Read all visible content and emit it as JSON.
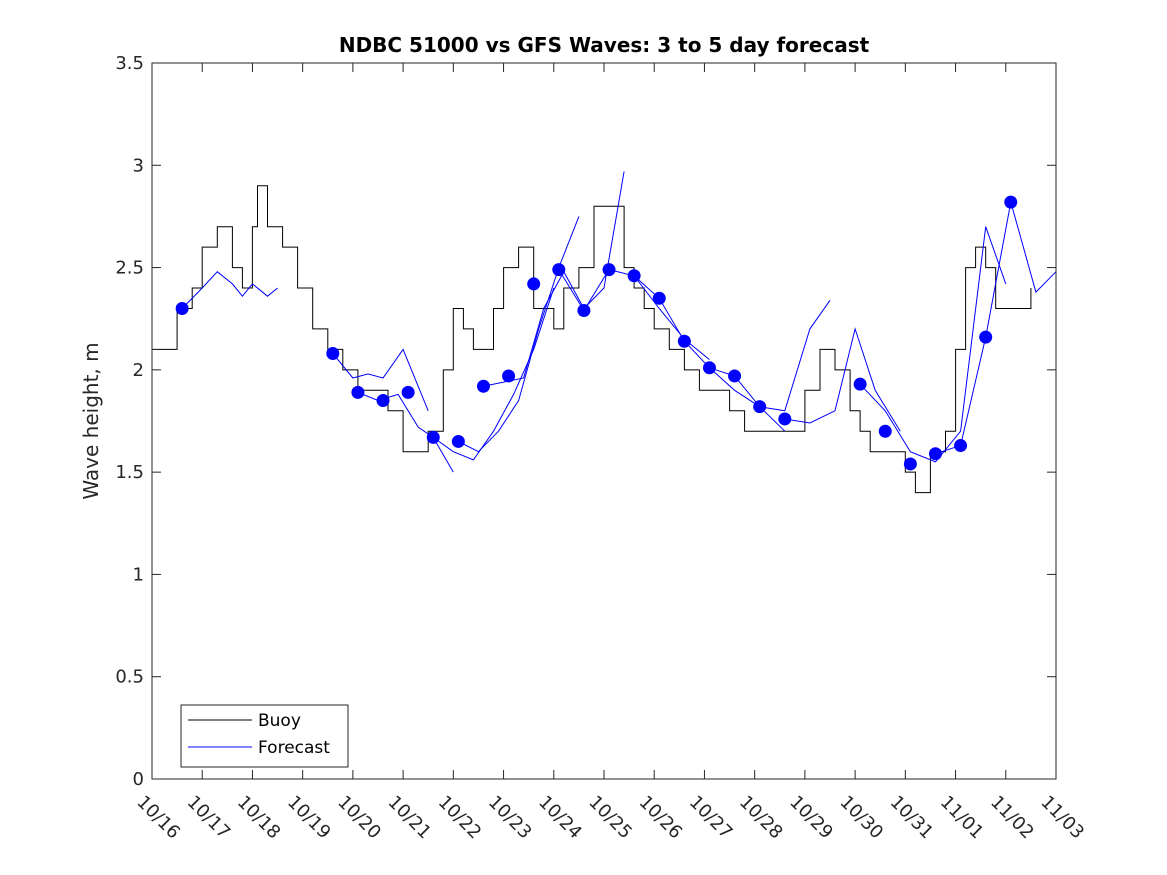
{
  "chart_data": {
    "type": "line",
    "title": "NDBC 51000 vs GFS Waves: 3 to 5 day forecast",
    "xlabel": "",
    "ylabel": "Wave height, m",
    "xlim": [
      0,
      18
    ],
    "ylim": [
      0,
      3.5
    ],
    "yticks": [
      0,
      0.5,
      1,
      1.5,
      2,
      2.5,
      3,
      3.5
    ],
    "ytick_labels": [
      "0",
      "0.5",
      "1",
      "1.5",
      "2",
      "2.5",
      "3",
      "3.5"
    ],
    "xticks": [
      0,
      1,
      2,
      3,
      4,
      5,
      6,
      7,
      8,
      9,
      10,
      11,
      12,
      13,
      14,
      15,
      16,
      17,
      18
    ],
    "xtick_labels": [
      "10/16",
      "10/17",
      "10/18",
      "10/19",
      "10/20",
      "10/21",
      "10/22",
      "10/23",
      "10/24",
      "10/25",
      "10/26",
      "10/27",
      "10/28",
      "10/29",
      "10/30",
      "10/31",
      "11/01",
      "11/02",
      "11/03"
    ],
    "legend": {
      "position": "bottom-left",
      "entries": [
        "Buoy",
        "Forecast"
      ]
    },
    "colors": {
      "buoy": "#000000",
      "forecast": "#0000ff",
      "axes": "#262626"
    },
    "buoy": {
      "name": "Buoy",
      "x": [
        0.0,
        0.5,
        0.8,
        1.0,
        1.3,
        1.6,
        1.8,
        2.0,
        2.1,
        2.3,
        2.6,
        2.9,
        3.2,
        3.5,
        3.8,
        4.1,
        4.4,
        4.7,
        5.0,
        5.3,
        5.5,
        5.8,
        6.0,
        6.2,
        6.4,
        6.6,
        6.8,
        7.0,
        7.3,
        7.6,
        7.8,
        8.0,
        8.2,
        8.5,
        8.8,
        9.1,
        9.4,
        9.6,
        9.8,
        10.0,
        10.3,
        10.6,
        10.9,
        11.2,
        11.5,
        11.8,
        12.1,
        12.4,
        12.7,
        13.0,
        13.3,
        13.6,
        13.9,
        14.1,
        14.3,
        14.5,
        14.7,
        15.0,
        15.2,
        15.5,
        15.8,
        16.0,
        16.2,
        16.4,
        16.6,
        16.8,
        17.0,
        17.3,
        17.5
      ],
      "values": [
        2.1,
        2.3,
        2.4,
        2.6,
        2.7,
        2.5,
        2.4,
        2.7,
        2.9,
        2.7,
        2.6,
        2.4,
        2.2,
        2.1,
        2.0,
        1.9,
        1.9,
        1.8,
        1.6,
        1.6,
        1.7,
        2.0,
        2.3,
        2.2,
        2.1,
        2.1,
        2.3,
        2.5,
        2.6,
        2.3,
        2.3,
        2.2,
        2.4,
        2.5,
        2.8,
        2.8,
        2.5,
        2.4,
        2.3,
        2.2,
        2.1,
        2.0,
        1.9,
        1.9,
        1.8,
        1.7,
        1.7,
        1.7,
        1.7,
        1.9,
        2.1,
        2.0,
        1.8,
        1.7,
        1.6,
        1.6,
        1.6,
        1.5,
        1.4,
        1.6,
        1.7,
        2.1,
        2.5,
        2.6,
        2.5,
        2.3,
        2.3,
        2.3,
        2.4
      ]
    },
    "forecast_series": [
      {
        "x": [
          0.6,
          1.0,
          1.3,
          1.6,
          1.8,
          2.0,
          2.3,
          2.5
        ],
        "values": [
          2.3,
          2.4,
          2.48,
          2.42,
          2.36,
          2.42,
          2.36,
          2.4
        ]
      },
      {
        "x": [
          3.6,
          4.0,
          4.3,
          4.6,
          5.0,
          5.5
        ],
        "values": [
          2.08,
          1.96,
          1.98,
          1.96,
          2.1,
          1.8
        ]
      },
      {
        "x": [
          4.1,
          4.5,
          4.9,
          5.3,
          5.6,
          6.0
        ],
        "values": [
          1.89,
          1.85,
          1.88,
          1.72,
          1.67,
          1.5
        ]
      },
      {
        "x": [
          5.6,
          6.0,
          6.4,
          6.8,
          7.2,
          7.6,
          8.0
        ],
        "values": [
          1.67,
          1.6,
          1.56,
          1.7,
          1.88,
          2.1,
          2.4
        ]
      },
      {
        "x": [
          6.1,
          6.5,
          6.9,
          7.3,
          7.7,
          8.1,
          8.5
        ],
        "values": [
          1.65,
          1.6,
          1.7,
          1.85,
          2.2,
          2.5,
          2.75
        ]
      },
      {
        "x": [
          6.6,
          7.0,
          7.4,
          7.8,
          8.2,
          8.6,
          9.0,
          9.4
        ],
        "values": [
          1.92,
          1.94,
          1.96,
          2.3,
          2.48,
          2.3,
          2.4,
          2.97
        ]
      },
      {
        "x": [
          8.1,
          8.6,
          9.1,
          9.6,
          10.1,
          10.6,
          11.1
        ],
        "values": [
          2.49,
          2.29,
          2.49,
          2.46,
          2.3,
          2.15,
          2.05
        ]
      },
      {
        "x": [
          9.6,
          10.1,
          10.6,
          11.1,
          11.6,
          12.1,
          12.6
        ],
        "values": [
          2.46,
          2.35,
          2.14,
          2.01,
          1.9,
          1.82,
          1.7
        ]
      },
      {
        "x": [
          11.1,
          11.6,
          12.1,
          12.6,
          13.1,
          13.5
        ],
        "values": [
          2.01,
          1.97,
          1.82,
          1.8,
          2.2,
          2.34
        ]
      },
      {
        "x": [
          12.6,
          13.1,
          13.6,
          14.0,
          14.4,
          14.9
        ],
        "values": [
          1.76,
          1.74,
          1.8,
          2.2,
          1.9,
          1.7
        ]
      },
      {
        "x": [
          14.1,
          14.6,
          15.1,
          15.6,
          16.1,
          16.6,
          17.0
        ],
        "values": [
          1.93,
          1.8,
          1.6,
          1.55,
          1.7,
          2.7,
          2.42
        ]
      },
      {
        "x": [
          15.6,
          16.1,
          16.6,
          17.1,
          17.6,
          18.0
        ],
        "values": [
          1.59,
          1.63,
          2.16,
          2.82,
          2.38,
          2.48
        ]
      }
    ],
    "forecast_markers": {
      "name": "Forecast",
      "x": [
        0.6,
        3.6,
        4.1,
        4.6,
        5.1,
        5.6,
        6.1,
        6.6,
        7.1,
        7.6,
        8.1,
        8.6,
        9.1,
        9.6,
        10.1,
        10.6,
        11.1,
        11.6,
        12.1,
        12.6,
        14.1,
        14.6,
        15.1,
        15.6,
        16.1,
        16.6,
        17.1
      ],
      "values": [
        2.3,
        2.08,
        1.89,
        1.85,
        1.89,
        1.67,
        1.65,
        1.92,
        1.97,
        2.42,
        2.49,
        2.29,
        2.49,
        2.46,
        2.35,
        2.14,
        2.01,
        1.97,
        1.82,
        1.76,
        1.93,
        1.7,
        1.54,
        1.59,
        1.63,
        2.16,
        2.82
      ]
    }
  }
}
